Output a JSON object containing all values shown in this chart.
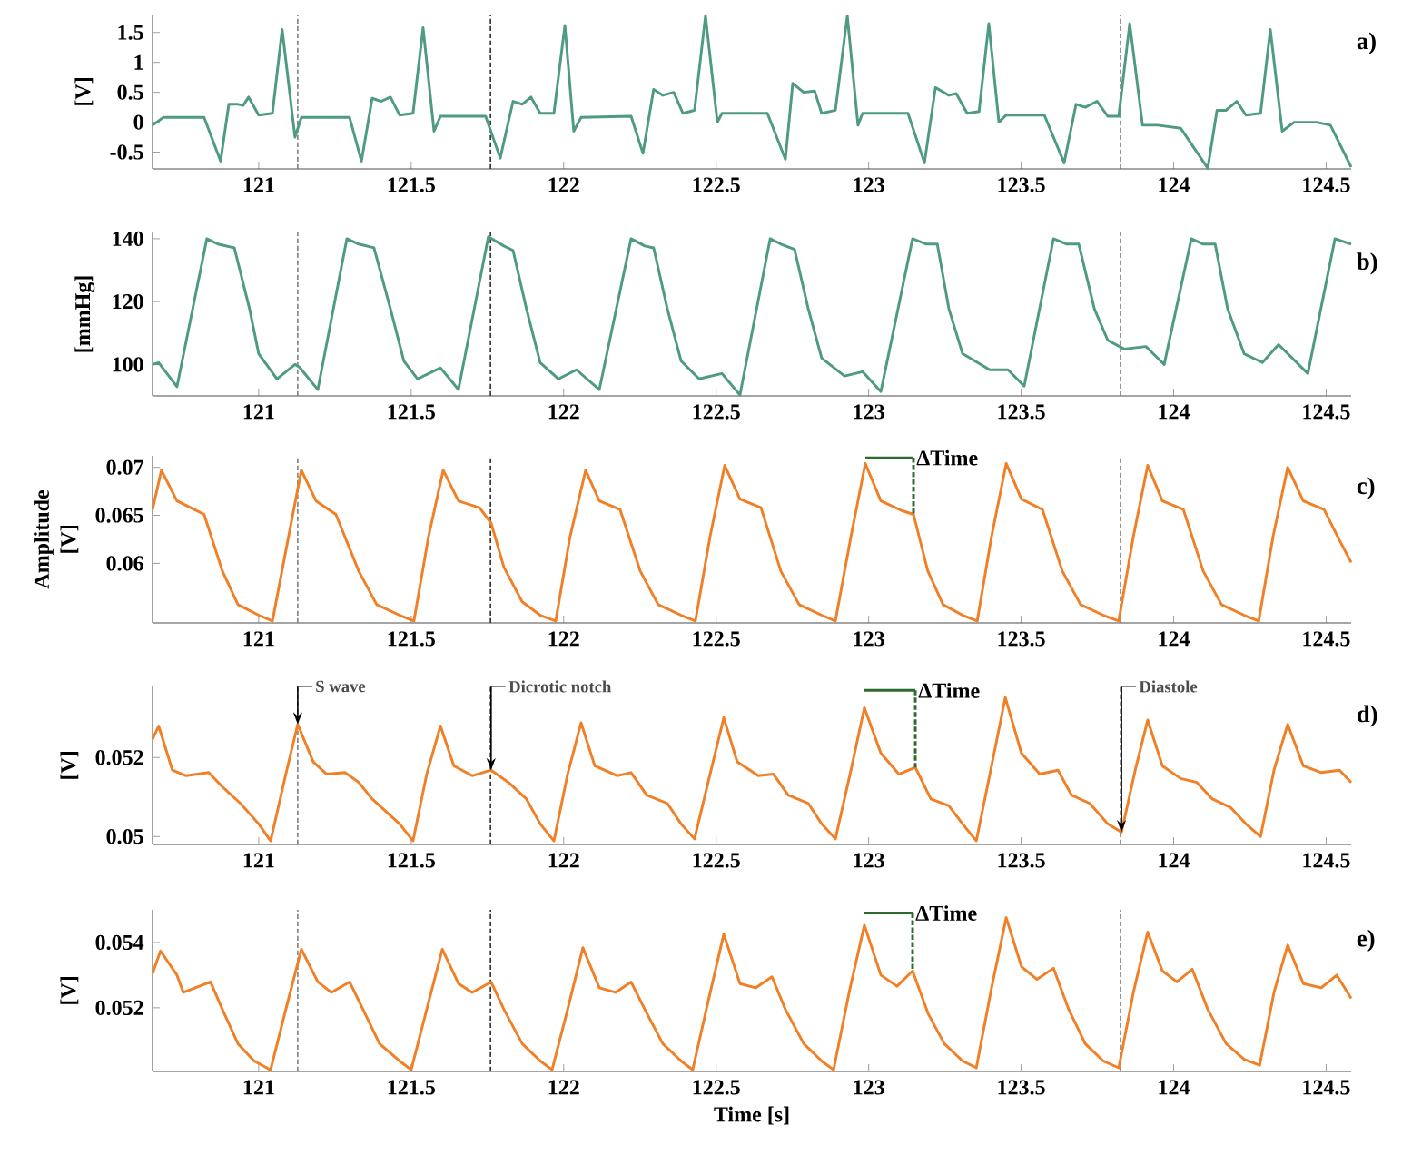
{
  "chart_data": [
    {
      "type": "line",
      "title": "a)",
      "ylabel": "[V]",
      "xlim": [
        120.652,
        124.582
      ],
      "xticks": [
        121,
        121.5,
        122,
        122.5,
        123,
        123.5,
        124,
        124.5
      ],
      "ylim": [
        -0.78,
        1.8
      ],
      "yticks": [
        -0.5,
        0,
        0.5,
        1,
        1.5
      ],
      "x": [
        120.652,
        120.687,
        120.821,
        120.875,
        120.902,
        120.932,
        120.949,
        120.967,
        121.0,
        121.045,
        121.077,
        121.119,
        121.14,
        121.298,
        121.337,
        121.372,
        121.402,
        121.432,
        121.462,
        121.506,
        121.539,
        121.575,
        121.596,
        121.744,
        121.792,
        121.834,
        121.864,
        121.893,
        121.923,
        121.968,
        122.004,
        122.033,
        122.057,
        122.221,
        122.26,
        122.295,
        122.325,
        122.361,
        122.391,
        122.429,
        122.465,
        122.504,
        122.519,
        122.668,
        122.727,
        122.751,
        122.787,
        122.823,
        122.846,
        122.891,
        122.93,
        122.965,
        122.98,
        123.129,
        123.183,
        123.219,
        123.263,
        123.287,
        123.323,
        123.362,
        123.394,
        123.427,
        123.451,
        123.576,
        123.641,
        123.68,
        123.71,
        123.749,
        123.784,
        123.82,
        123.856,
        123.898,
        123.948,
        124.023,
        124.112,
        124.142,
        124.172,
        124.207,
        124.237,
        124.285,
        124.317,
        124.356,
        124.395,
        124.469,
        124.514,
        124.582
      ],
      "series": [
        {
          "color": "#4e9a84",
          "values": [
            -0.05,
            0.08,
            0.08,
            -0.65,
            0.3,
            0.3,
            0.28,
            0.42,
            0.12,
            0.15,
            1.55,
            -0.25,
            0.08,
            0.08,
            -0.65,
            0.4,
            0.35,
            0.42,
            0.12,
            0.15,
            1.58,
            -0.15,
            0.1,
            0.1,
            -0.6,
            0.35,
            0.3,
            0.42,
            0.15,
            0.15,
            1.62,
            -0.15,
            0.08,
            0.1,
            -0.52,
            0.55,
            0.45,
            0.5,
            0.15,
            0.2,
            1.78,
            0.0,
            0.15,
            0.15,
            -0.62,
            0.65,
            0.5,
            0.52,
            0.15,
            0.2,
            1.78,
            -0.05,
            0.15,
            0.15,
            -0.68,
            0.58,
            0.45,
            0.48,
            0.15,
            0.18,
            1.65,
            0.0,
            0.12,
            0.12,
            -0.68,
            0.3,
            0.25,
            0.35,
            0.1,
            0.1,
            1.65,
            -0.05,
            -0.05,
            -0.1,
            -0.77,
            0.2,
            0.2,
            0.35,
            0.12,
            0.15,
            1.55,
            -0.15,
            0.0,
            0.0,
            -0.05,
            -0.75
          ]
        }
      ],
      "ref_lines": [
        {
          "axis": "x",
          "value": 121.128,
          "color": "#808080",
          "line_style": "dashed"
        },
        {
          "axis": "x",
          "value": 121.76,
          "color": "#303030",
          "line_style": "dashed"
        },
        {
          "axis": "x",
          "value": 123.826,
          "color": "#707070",
          "line_style": "dashed"
        }
      ]
    },
    {
      "type": "line",
      "title": "b)",
      "ylabel": "[mmHg]",
      "xlim": [
        120.652,
        124.582
      ],
      "xticks": [
        121,
        121.5,
        122,
        122.5,
        123,
        123.5,
        124,
        124.5
      ],
      "ylim": [
        90,
        142
      ],
      "yticks": [
        100,
        120,
        140
      ],
      "x": [
        120.652,
        120.672,
        120.732,
        120.83,
        120.866,
        120.92,
        120.97,
        121.0,
        121.06,
        121.119,
        121.134,
        121.194,
        121.289,
        121.328,
        121.378,
        121.432,
        121.476,
        121.521,
        121.596,
        121.655,
        121.753,
        121.804,
        121.834,
        121.878,
        121.923,
        121.983,
        122.042,
        122.117,
        122.221,
        122.266,
        122.295,
        122.34,
        122.385,
        122.444,
        122.519,
        122.578,
        122.677,
        122.712,
        122.757,
        122.802,
        122.846,
        122.921,
        122.98,
        123.04,
        123.144,
        123.189,
        123.225,
        123.263,
        123.308,
        123.397,
        123.457,
        123.51,
        123.606,
        123.65,
        123.689,
        123.74,
        123.784,
        123.838,
        123.909,
        123.969,
        124.058,
        124.097,
        124.136,
        124.177,
        124.231,
        124.291,
        124.344,
        124.44,
        124.529,
        124.582
      ],
      "series": [
        {
          "color": "#4e9a84",
          "values": [
            100,
            100.6,
            92.9,
            140,
            138.3,
            137.1,
            117.7,
            103.4,
            95.4,
            100,
            99.1,
            92,
            140,
            138.3,
            137.1,
            117.7,
            101.1,
            95.4,
            98.9,
            92,
            140.6,
            137.7,
            136.3,
            117.7,
            100.6,
            95.4,
            98.3,
            92,
            140,
            137.7,
            137.1,
            117.7,
            101.1,
            95.4,
            97.1,
            90.3,
            140,
            138.3,
            136.6,
            117.7,
            102,
            96.3,
            97.7,
            91.4,
            140,
            138.3,
            138.3,
            117.7,
            103.4,
            98.3,
            98.3,
            93.1,
            140,
            138.3,
            138.3,
            117.7,
            107.7,
            104.9,
            105.7,
            100,
            140,
            138.3,
            138.3,
            117.7,
            103.4,
            100.6,
            106.3,
            97.1,
            140,
            138.3
          ]
        }
      ],
      "ref_lines": [
        {
          "axis": "x",
          "value": 121.128,
          "color": "#808080",
          "line_style": "dashed"
        },
        {
          "axis": "x",
          "value": 121.76,
          "color": "#303030",
          "line_style": "dashed"
        },
        {
          "axis": "x",
          "value": 123.826,
          "color": "#707070",
          "line_style": "dashed"
        }
      ]
    },
    {
      "type": "line",
      "title": "c)",
      "ylabel": "Amplitude [V]",
      "xlim": [
        120.652,
        124.582
      ],
      "xticks": [
        121,
        121.5,
        122,
        122.5,
        123,
        123.5,
        124,
        124.5
      ],
      "ylim": [
        0.0538,
        0.0712
      ],
      "yticks": [
        0.06,
        0.065,
        0.07
      ],
      "x": [
        120.652,
        120.681,
        120.732,
        120.777,
        120.821,
        120.881,
        120.932,
        121.0,
        121.045,
        121.098,
        121.14,
        121.188,
        121.253,
        121.328,
        121.387,
        121.462,
        121.509,
        121.557,
        121.605,
        121.655,
        121.724,
        121.762,
        121.804,
        121.864,
        121.923,
        121.974,
        122.021,
        122.072,
        122.117,
        122.185,
        122.251,
        122.31,
        122.385,
        122.432,
        122.48,
        122.528,
        122.578,
        122.647,
        122.712,
        122.772,
        122.846,
        122.891,
        122.942,
        122.989,
        123.04,
        123.108,
        123.147,
        123.194,
        123.244,
        123.308,
        123.356,
        123.403,
        123.451,
        123.501,
        123.57,
        123.635,
        123.695,
        123.769,
        123.82,
        123.868,
        123.915,
        123.963,
        124.032,
        124.097,
        124.157,
        124.231,
        124.279,
        124.326,
        124.374,
        124.425,
        124.493,
        124.544,
        124.582
      ],
      "series": [
        {
          "color": "#f07f26",
          "values": [
            0.0656,
            0.0697,
            0.0665,
            0.0658,
            0.0651,
            0.0592,
            0.0557,
            0.0546,
            0.054,
            0.0628,
            0.0697,
            0.0665,
            0.0651,
            0.0592,
            0.0557,
            0.0546,
            0.054,
            0.0628,
            0.0697,
            0.0665,
            0.0658,
            0.0642,
            0.0596,
            0.056,
            0.0546,
            0.054,
            0.0628,
            0.0697,
            0.0665,
            0.0656,
            0.0592,
            0.0557,
            0.0546,
            0.054,
            0.0628,
            0.0702,
            0.0667,
            0.0658,
            0.0592,
            0.0557,
            0.0546,
            0.054,
            0.0628,
            0.0704,
            0.0665,
            0.0655,
            0.0651,
            0.0592,
            0.0557,
            0.0546,
            0.054,
            0.0628,
            0.0704,
            0.0667,
            0.0656,
            0.0592,
            0.0557,
            0.0546,
            0.054,
            0.0628,
            0.0702,
            0.0665,
            0.0656,
            0.0592,
            0.0557,
            0.0546,
            0.054,
            0.0628,
            0.07,
            0.0665,
            0.0656,
            0.0624,
            0.0601
          ]
        },
        {
          "color": "#2e6b2e",
          "x": [
            122.989,
            123.147
          ],
          "values": [
            0.071,
            0.071
          ]
        },
        {
          "color": "#2e6b2e",
          "line_style": "dashed",
          "x": [
            123.147,
            123.147
          ],
          "values": [
            0.071,
            0.0651
          ]
        }
      ],
      "annotations": [
        {
          "text": "ΔTime",
          "x": 123.147,
          "y": 0.071
        }
      ],
      "ref_lines": [
        {
          "axis": "x",
          "value": 121.128,
          "color": "#808080",
          "line_style": "dashed"
        },
        {
          "axis": "x",
          "value": 121.76,
          "color": "#303030",
          "line_style": "dashed"
        },
        {
          "axis": "x",
          "value": 123.826,
          "color": "#707070",
          "line_style": "dashed"
        }
      ]
    },
    {
      "type": "line",
      "title": "d)",
      "ylabel": "[V]",
      "xlim": [
        120.652,
        124.582
      ],
      "xticks": [
        121,
        121.5,
        122,
        122.5,
        123,
        123.5,
        124,
        124.5
      ],
      "ylim": [
        0.0498,
        0.0538
      ],
      "yticks": [
        0.05,
        0.052
      ],
      "x": [
        120.652,
        120.672,
        120.717,
        120.762,
        120.836,
        120.881,
        120.94,
        121.0,
        121.039,
        121.089,
        121.128,
        121.179,
        121.223,
        121.283,
        121.328,
        121.372,
        121.462,
        121.506,
        121.551,
        121.596,
        121.64,
        121.7,
        121.762,
        121.819,
        121.878,
        121.923,
        121.968,
        122.013,
        122.057,
        122.102,
        122.176,
        122.221,
        122.272,
        122.34,
        122.385,
        122.429,
        122.48,
        122.525,
        122.569,
        122.638,
        122.688,
        122.736,
        122.802,
        122.846,
        122.891,
        122.942,
        122.986,
        123.04,
        123.099,
        123.153,
        123.204,
        123.263,
        123.308,
        123.353,
        123.403,
        123.448,
        123.501,
        123.561,
        123.621,
        123.665,
        123.725,
        123.784,
        123.829,
        123.874,
        123.915,
        123.963,
        124.023,
        124.076,
        124.127,
        124.186,
        124.237,
        124.285,
        124.329,
        124.374,
        124.425,
        124.484,
        124.544,
        124.582
      ],
      "series": [
        {
          "color": "#f07f26",
          "values": [
            0.05246,
            0.0528,
            0.05168,
            0.05154,
            0.05162,
            0.05126,
            0.05084,
            0.05032,
            0.04989,
            0.05158,
            0.05284,
            0.05189,
            0.05158,
            0.05162,
            0.05137,
            0.05095,
            0.05032,
            0.04989,
            0.05158,
            0.0528,
            0.05179,
            0.05154,
            0.05168,
            0.05137,
            0.05095,
            0.05032,
            0.04989,
            0.05158,
            0.05288,
            0.05179,
            0.05154,
            0.05162,
            0.05105,
            0.05084,
            0.05032,
            0.04994,
            0.05158,
            0.05301,
            0.05189,
            0.05154,
            0.05158,
            0.05105,
            0.05084,
            0.05032,
            0.04994,
            0.05168,
            0.05326,
            0.05211,
            0.05158,
            0.05175,
            0.05095,
            0.05078,
            0.05032,
            0.04989,
            0.05179,
            0.05352,
            0.05211,
            0.05158,
            0.05168,
            0.05105,
            0.05084,
            0.05032,
            0.05011,
            0.05168,
            0.05295,
            0.05179,
            0.05147,
            0.05137,
            0.05095,
            0.05074,
            0.05032,
            0.05,
            0.05168,
            0.05284,
            0.05179,
            0.05162,
            0.05168,
            0.05137
          ]
        },
        {
          "color": "#2e6b2e",
          "x": [
            122.986,
            123.153
          ],
          "values": [
            0.0537,
            0.0537
          ]
        },
        {
          "color": "#2e6b2e",
          "line_style": "dashed",
          "x": [
            123.153,
            123.153
          ],
          "values": [
            0.0537,
            0.05175
          ]
        }
      ],
      "annotations": [
        {
          "text": "S wave",
          "x": 121.128,
          "y": 0.05284
        },
        {
          "text": "Dicrotic notch",
          "x": 121.762,
          "y": 0.05168
        },
        {
          "text": "ΔTime",
          "x": 123.153,
          "y": 0.0537
        },
        {
          "text": "Diastole",
          "x": 123.829,
          "y": 0.05011
        }
      ],
      "ref_lines": [
        {
          "axis": "x",
          "value": 121.128,
          "color": "#808080",
          "line_style": "dashed"
        },
        {
          "axis": "x",
          "value": 121.76,
          "color": "#303030",
          "line_style": "dashed"
        },
        {
          "axis": "x",
          "value": 123.826,
          "color": "#707070",
          "line_style": "dashed"
        }
      ]
    },
    {
      "type": "line",
      "title": "e)",
      "ylabel": "[V]",
      "xlabel": "Time [s]",
      "xlim": [
        120.652,
        124.582
      ],
      "xticks": [
        121,
        121.5,
        122,
        122.5,
        123,
        123.5,
        124,
        124.5
      ],
      "ylim": [
        0.05005,
        0.055
      ],
      "yticks": [
        0.052,
        0.054
      ],
      "x": [
        120.652,
        120.678,
        120.732,
        120.753,
        120.792,
        120.842,
        120.881,
        120.932,
        120.985,
        121.039,
        121.089,
        121.14,
        121.194,
        121.238,
        121.298,
        121.342,
        121.396,
        121.462,
        121.5,
        121.551,
        121.602,
        121.655,
        121.7,
        121.762,
        121.804,
        121.864,
        121.923,
        121.962,
        122.013,
        122.063,
        122.117,
        122.17,
        122.221,
        122.266,
        122.325,
        122.385,
        122.423,
        122.474,
        122.525,
        122.578,
        122.629,
        122.683,
        122.727,
        122.787,
        122.846,
        122.885,
        122.936,
        122.986,
        123.04,
        123.093,
        123.144,
        123.195,
        123.248,
        123.308,
        123.353,
        123.403,
        123.451,
        123.501,
        123.552,
        123.606,
        123.656,
        123.71,
        123.769,
        123.82,
        123.868,
        123.915,
        123.963,
        124.011,
        124.061,
        124.112,
        124.172,
        124.231,
        124.282,
        124.329,
        124.374,
        124.425,
        124.484,
        124.535,
        124.582
      ],
      "series": [
        {
          "color": "#f07f26",
          "values": [
            0.05305,
            0.05374,
            0.053,
            0.05247,
            0.05261,
            0.05279,
            0.05195,
            0.0509,
            0.05037,
            0.0501,
            0.05195,
            0.05379,
            0.05279,
            0.05247,
            0.05279,
            0.05195,
            0.0509,
            0.05037,
            0.0501,
            0.05195,
            0.05379,
            0.05274,
            0.05247,
            0.05279,
            0.05195,
            0.0509,
            0.05037,
            0.0501,
            0.05195,
            0.05384,
            0.05261,
            0.05247,
            0.05279,
            0.05195,
            0.0509,
            0.05037,
            0.0501,
            0.05221,
            0.05426,
            0.05274,
            0.05261,
            0.05295,
            0.05195,
            0.0509,
            0.05037,
            0.0501,
            0.05247,
            0.05453,
            0.053,
            0.05266,
            0.05313,
            0.05182,
            0.0509,
            0.05037,
            0.05016,
            0.05261,
            0.05476,
            0.05326,
            0.05287,
            0.05321,
            0.05195,
            0.0509,
            0.05037,
            0.05016,
            0.05247,
            0.05432,
            0.05313,
            0.05279,
            0.05318,
            0.05195,
            0.0509,
            0.05042,
            0.05024,
            0.05247,
            0.05392,
            0.05274,
            0.05261,
            0.053,
            0.05229
          ]
        },
        {
          "color": "#2e6b2e",
          "x": [
            122.986,
            123.144
          ],
          "values": [
            0.0549,
            0.0549
          ]
        },
        {
          "color": "#2e6b2e",
          "line_style": "dashed",
          "x": [
            123.144,
            123.144
          ],
          "values": [
            0.0549,
            0.05313
          ]
        }
      ],
      "annotations": [
        {
          "text": "ΔTime",
          "x": 123.144,
          "y": 0.0549
        }
      ],
      "ref_lines": [
        {
          "axis": "x",
          "value": 121.128,
          "color": "#808080",
          "line_style": "dashed"
        },
        {
          "axis": "x",
          "value": 121.76,
          "color": "#303030",
          "line_style": "dashed"
        },
        {
          "axis": "x",
          "value": 123.826,
          "color": "#707070",
          "line_style": "dashed"
        }
      ]
    }
  ]
}
